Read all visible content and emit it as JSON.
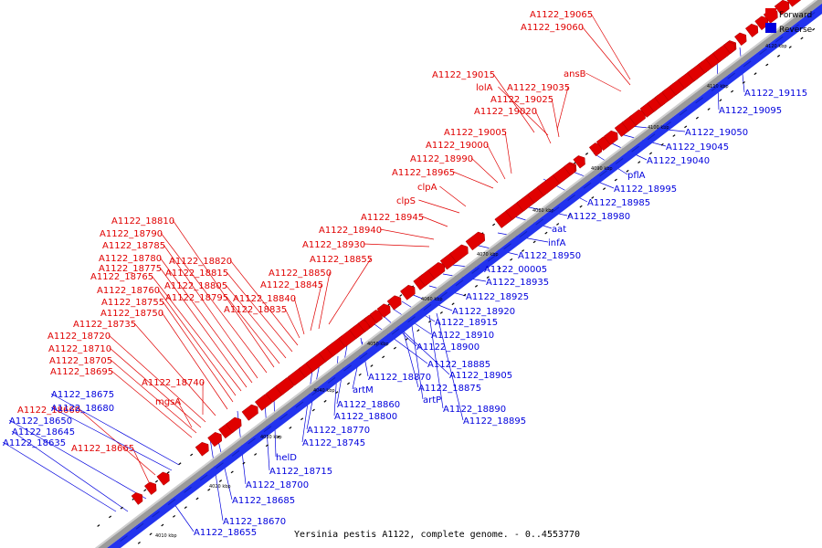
{
  "colors": {
    "forward": "#e00000",
    "reverse": "#0000dd",
    "backbone": "#2233ee",
    "backbone_grey": "#9a9a9a"
  },
  "legend": {
    "forward": "Forward",
    "reverse": "Reverse"
  },
  "caption": "Yersinia pestis A1122, complete genome. - 0..4553770",
  "ticks": [
    "4010 kbp",
    "4020 kbp",
    "4030 kbp",
    "4040 kbp",
    "4050 kbp",
    "4060 kbp",
    "4070 kbp",
    "4080 kbp",
    "4090 kbp",
    "4100 kbp",
    "4110 kbp",
    "4120 kbp"
  ],
  "forward_labels": [
    "A1122_19065",
    "A1122_19060",
    "ansB",
    "A1122_19015",
    "lolA",
    "A1122_19035",
    "A1122_19025",
    "A1122_19020",
    "A1122_19005",
    "A1122_19000",
    "A1122_18990",
    "A1122_18965",
    "clpA",
    "clpS",
    "A1122_18945",
    "A1122_18940",
    "A1122_18930",
    "A1122_18855",
    "A1122_18850",
    "A1122_18845",
    "A1122_18840",
    "A1122_18835",
    "A1122_18820",
    "A1122_18815",
    "A1122_18805",
    "A1122_18795",
    "A1122_18810",
    "A1122_18790",
    "A1122_18785",
    "A1122_18780",
    "A1122_18775",
    "A1122_18765",
    "A1122_18760",
    "A1122_18755",
    "A1122_18750",
    "A1122_18735",
    "A1122_18720",
    "A1122_18710",
    "A1122_18705",
    "A1122_18695",
    "A1122_18740",
    "mgsA",
    "A1122_18660",
    "A1122_18665"
  ],
  "reverse_labels": [
    "A1122_19115",
    "A1122_19095",
    "A1122_19050",
    "A1122_19045",
    "A1122_19040",
    "pflA",
    "A1122_18995",
    "A1122_18985",
    "A1122_18980",
    "aat",
    "infA",
    "A1122_18950",
    "A1122_00005",
    "A1122_18935",
    "A1122_18925",
    "A1122_18920",
    "A1122_18915",
    "A1122_18910",
    "A1122_18900",
    "A1122_18885",
    "A1122_18905",
    "A1122_18870",
    "A1122_18875",
    "artM",
    "artP",
    "A1122_18860",
    "A1122_18890",
    "A1122_18800",
    "A1122_18895",
    "A1122_18770",
    "A1122_18745",
    "helD",
    "A1122_18715",
    "A1122_18700",
    "A1122_18685",
    "A1122_18670",
    "A1122_18655",
    "A1122_18680",
    "A1122_18675",
    "A1122_18650",
    "A1122_18645",
    "A1122_18635"
  ]
}
